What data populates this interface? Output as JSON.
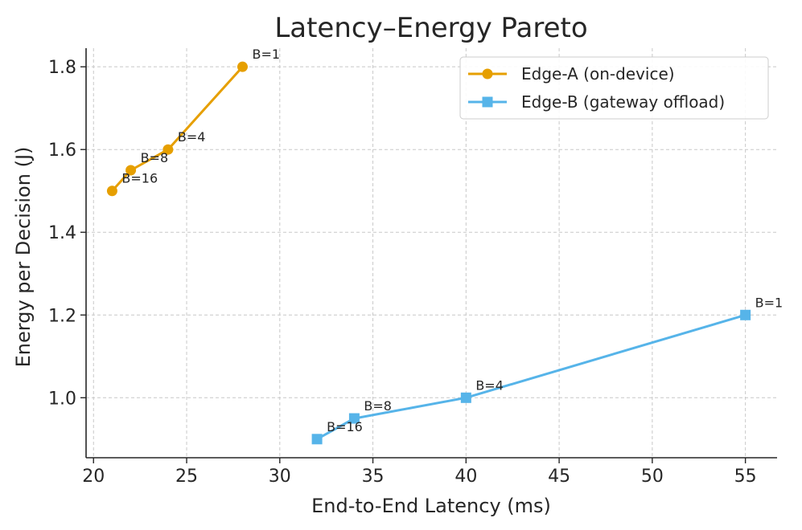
{
  "chart_data": {
    "type": "line",
    "title": "Latency–Energy Pareto",
    "xlabel": "End-to-End Latency (ms)",
    "ylabel": "Energy per Decision (J)",
    "xlim": [
      19.6,
      56.7
    ],
    "ylim": [
      0.855,
      1.845
    ],
    "xticks": [
      20,
      25,
      30,
      35,
      40,
      45,
      50,
      55
    ],
    "yticks": [
      1.0,
      1.2,
      1.4,
      1.6,
      1.8
    ],
    "xtick_labels": [
      "20",
      "25",
      "30",
      "35",
      "40",
      "45",
      "50",
      "55"
    ],
    "ytick_labels": [
      "1.0",
      "1.2",
      "1.4",
      "1.6",
      "1.8"
    ],
    "grid": true,
    "legend_position": "top-right",
    "series": [
      {
        "name": "Edge-A (on-device)",
        "color": "#E69F00",
        "marker": "circle",
        "x": [
          28,
          24,
          22,
          21
        ],
        "y": [
          1.8,
          1.6,
          1.55,
          1.5
        ],
        "labels": [
          "B=1",
          "B=4",
          "B=8",
          "B=16"
        ]
      },
      {
        "name": "Edge-B (gateway offload)",
        "color": "#56B4E9",
        "marker": "square",
        "x": [
          55,
          40,
          34,
          32
        ],
        "y": [
          1.2,
          1.0,
          0.95,
          0.9
        ],
        "labels": [
          "B=1",
          "B=4",
          "B=8",
          "B=16"
        ]
      }
    ]
  }
}
